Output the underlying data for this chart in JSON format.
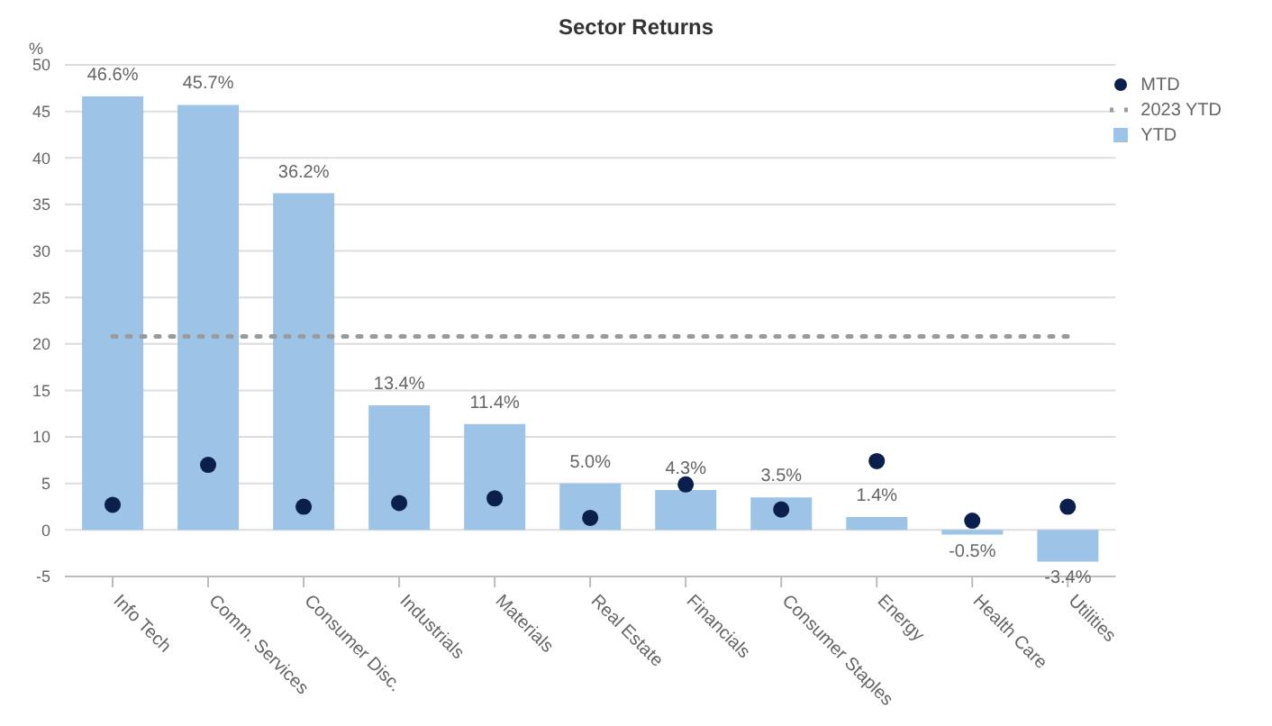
{
  "chart_data": {
    "type": "bar",
    "title": "Sector Returns",
    "ylabel": "%",
    "categories": [
      "Info Tech",
      "Comm. Services",
      "Consumer Disc.",
      "Industrials",
      "Materials",
      "Real Estate",
      "Financials",
      "Consumer Staples",
      "Energy",
      "Health Care",
      "Utilities"
    ],
    "series": [
      {
        "name": "MTD",
        "type": "scatter",
        "color": "#0b1f4d",
        "marker": "circle",
        "values": [
          2.7,
          7.0,
          2.5,
          2.9,
          3.4,
          1.3,
          4.9,
          2.2,
          7.4,
          1.0,
          2.5
        ]
      },
      {
        "name": "2023 YTD",
        "type": "line",
        "color": "#9a9a9a",
        "marker": "none",
        "line_style": "dotted",
        "values": [
          20.8,
          20.8,
          20.8,
          20.8,
          20.8,
          20.8,
          20.8,
          20.8,
          20.8,
          20.8,
          20.8
        ]
      },
      {
        "name": "YTD",
        "color": "#9dc3e6",
        "values": [
          46.6,
          45.7,
          36.2,
          13.4,
          11.4,
          5.0,
          4.3,
          3.5,
          1.4,
          -0.5,
          -3.4
        ],
        "value_labels": [
          "46.6%",
          "45.7%",
          "36.2%",
          "13.4%",
          "11.4%",
          "5.0%",
          "4.3%",
          "3.5%",
          "1.4%",
          "-0.5%",
          "-3.4%"
        ]
      }
    ],
    "ylim": [
      -5,
      50
    ],
    "yticks": [
      -5,
      0,
      5,
      10,
      15,
      20,
      25,
      30,
      35,
      40,
      45,
      50
    ],
    "grid": "y",
    "legend": "top right"
  }
}
